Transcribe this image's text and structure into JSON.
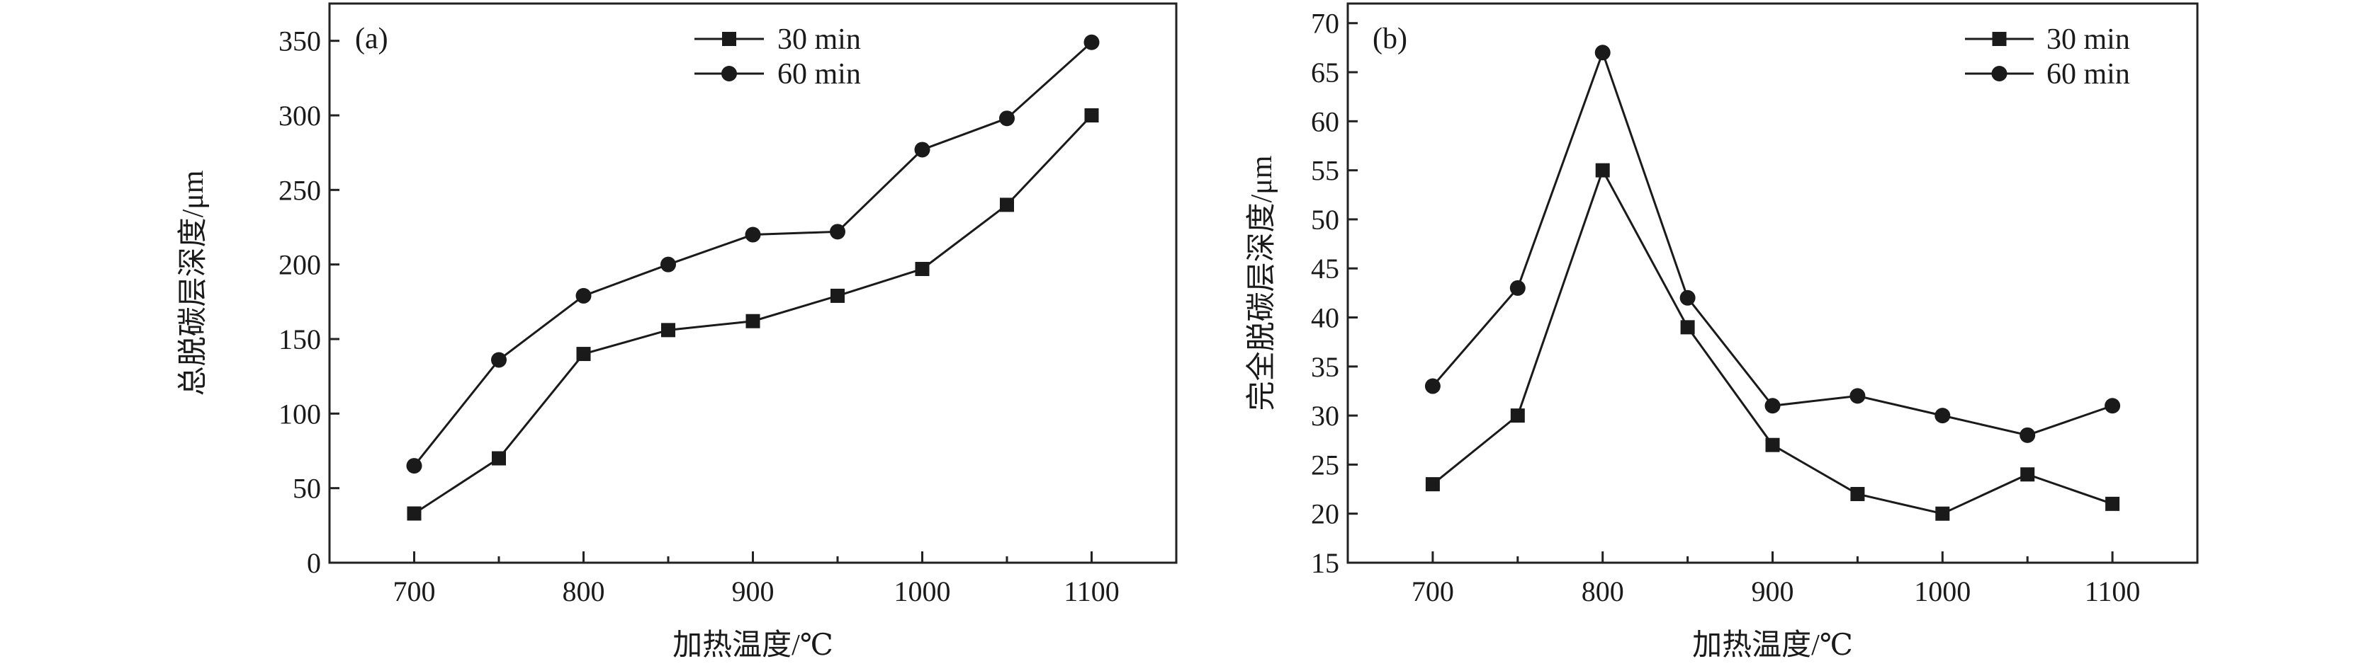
{
  "chart_data": [
    {
      "type": "line",
      "panel_label": "(a)",
      "xlabel": "加热温度/℃",
      "ylabel": "总脱碳层深度/μm",
      "xlim": [
        650,
        1150
      ],
      "ylim": [
        0,
        375
      ],
      "xticks": [
        700,
        800,
        900,
        1000,
        1100
      ],
      "xminor": [
        750,
        850,
        950,
        1050
      ],
      "yticks": [
        0,
        50,
        100,
        150,
        200,
        250,
        300,
        350
      ],
      "grid": false,
      "legend": "top-center",
      "x": [
        700,
        750,
        800,
        850,
        900,
        950,
        1000,
        1050,
        1100
      ],
      "series": [
        {
          "name": "30 min",
          "marker": "square",
          "values": [
            33,
            70,
            140,
            156,
            162,
            179,
            197,
            240,
            300
          ]
        },
        {
          "name": "60 min",
          "marker": "circle",
          "values": [
            65,
            136,
            179,
            200,
            220,
            222,
            277,
            298,
            349
          ]
        }
      ]
    },
    {
      "type": "line",
      "panel_label": "(b)",
      "xlabel": "加热温度/℃",
      "ylabel": "完全脱碳层深度/μm",
      "xlim": [
        650,
        1150
      ],
      "ylim": [
        15,
        72
      ],
      "xticks": [
        700,
        800,
        900,
        1000,
        1100
      ],
      "xminor": [
        750,
        850,
        950,
        1050
      ],
      "yticks": [
        15,
        20,
        25,
        30,
        35,
        40,
        45,
        50,
        55,
        60,
        65,
        70
      ],
      "grid": false,
      "legend": "top-right",
      "x": [
        700,
        750,
        800,
        850,
        900,
        950,
        1000,
        1050,
        1100
      ],
      "series": [
        {
          "name": "30 min",
          "marker": "square",
          "values": [
            23,
            30,
            55,
            39,
            27,
            22,
            20,
            24,
            21
          ]
        },
        {
          "name": "60 min",
          "marker": "circle",
          "values": [
            33,
            43,
            67,
            42,
            31,
            32,
            30,
            28,
            31
          ]
        }
      ]
    }
  ]
}
